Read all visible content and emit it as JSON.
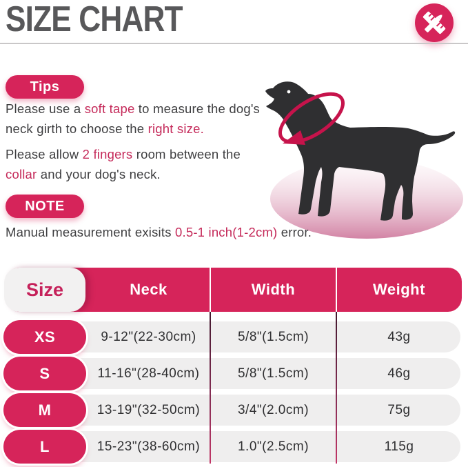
{
  "header": {
    "title": "SIZE CHART",
    "icon": "ruler-pencil"
  },
  "colors": {
    "accent": "#d6245a",
    "highlight_text": "#c52a5a",
    "title_text": "#58585a",
    "body_text": "#3e3e40",
    "row_background": "#efeeee",
    "column_divider": "#8a2e56",
    "dog_silhouette": "#2f2f31",
    "tape": "#c6134b"
  },
  "tips": {
    "badge": "Tips",
    "paragraphs": [
      {
        "segments": [
          {
            "t": "Please use a "
          },
          {
            "t": "soft tape",
            "h": true
          },
          {
            "t": " to measure the dog's"
          },
          {
            "br": true
          },
          {
            "t": "neck girth to choose the "
          },
          {
            "t": "right size.",
            "h": true
          }
        ]
      },
      {
        "segments": [
          {
            "t": "Please allow "
          },
          {
            "t": "2 fingers",
            "h": true
          },
          {
            "t": " room between the"
          },
          {
            "br": true
          },
          {
            "t": "collar",
            "h": true
          },
          {
            "t": " and your dog's neck."
          }
        ]
      }
    ]
  },
  "note": {
    "badge": "NOTE",
    "segments": [
      {
        "t": "Manual measurement exisits "
      },
      {
        "t": "0.5-1 inch(1-2cm)",
        "h": true
      },
      {
        "t": " error."
      }
    ]
  },
  "illustration": {
    "subject": "dog silhouette with measuring tape around neck"
  },
  "table": {
    "headers": [
      "Size",
      "Neck",
      "Width",
      "Weight"
    ],
    "rows": [
      {
        "size": "XS",
        "neck": "9-12\"(22-30cm)",
        "width": "5/8\"(1.5cm)",
        "weight": "43g"
      },
      {
        "size": "S",
        "neck": "11-16\"(28-40cm)",
        "width": "5/8\"(1.5cm)",
        "weight": "46g"
      },
      {
        "size": "M",
        "neck": "13-19\"(32-50cm)",
        "width": "3/4\"(2.0cm)",
        "weight": "75g"
      },
      {
        "size": "L",
        "neck": "15-23\"(38-60cm)",
        "width": "1.0\"(2.5cm)",
        "weight": "115g"
      }
    ]
  },
  "chart_data": {
    "type": "table",
    "title": "SIZE CHART",
    "columns": [
      "Size",
      "Neck",
      "Width",
      "Weight"
    ],
    "rows": [
      [
        "XS",
        "9-12\"(22-30cm)",
        "5/8\"(1.5cm)",
        "43g"
      ],
      [
        "S",
        "11-16\"(28-40cm)",
        "5/8\"(1.5cm)",
        "46g"
      ],
      [
        "M",
        "13-19\"(32-50cm)",
        "3/4\"(2.0cm)",
        "75g"
      ],
      [
        "L",
        "15-23\"(38-60cm)",
        "1.0\"(2.5cm)",
        "115g"
      ]
    ]
  }
}
